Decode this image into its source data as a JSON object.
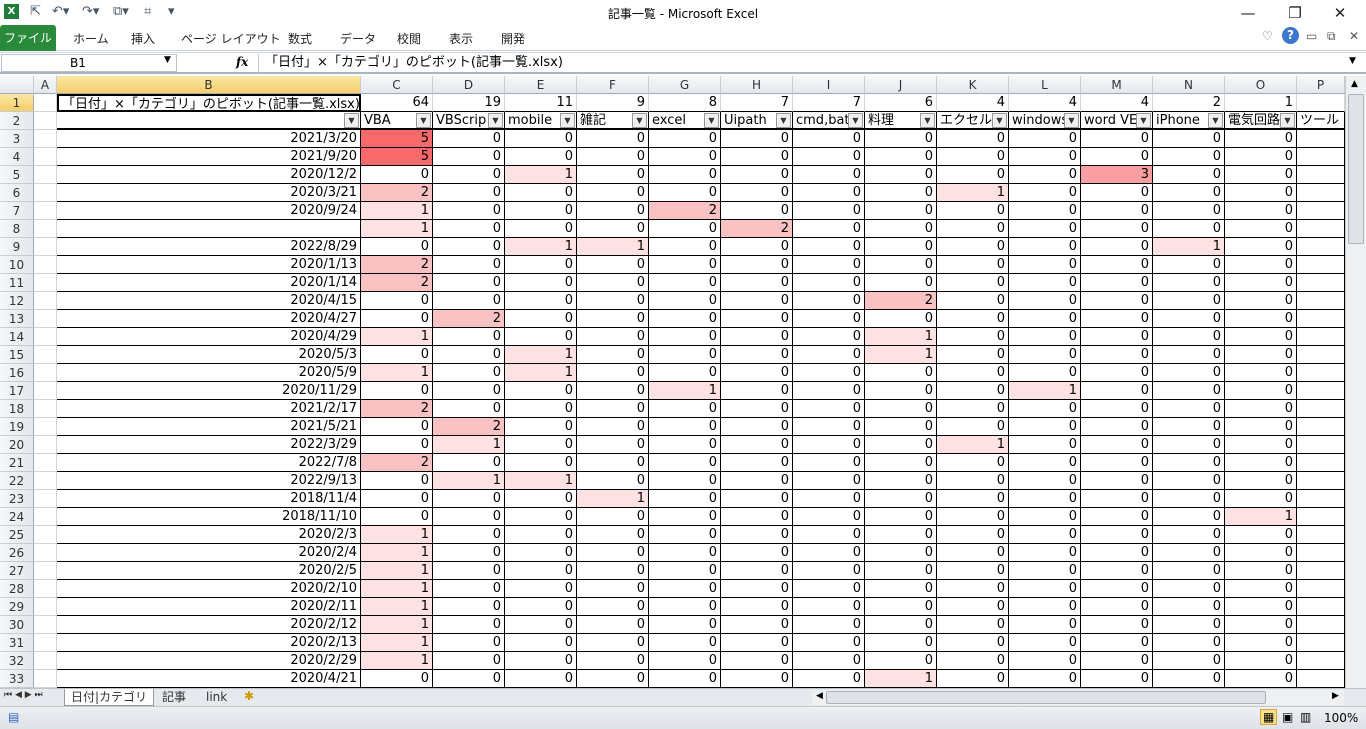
{
  "window": {
    "title": "記事一覧 - Microsoft Excel",
    "minimize": "—",
    "restore": "❐",
    "close": "✕"
  },
  "quick_access": [
    "excel-logo",
    "pointer",
    "undo",
    "redo",
    "shapes",
    "table-tool",
    "customize"
  ],
  "ribbon": {
    "tabs": [
      "ファイル",
      "ホーム",
      "挿入",
      "ページ レイアウト",
      "数式",
      "データ",
      "校閲",
      "表示",
      "開発"
    ]
  },
  "formula_bar": {
    "name_box": "B1",
    "fx": "fx",
    "value": "「日付」×「カテゴリ」のピボット(記事一覧.xlsx)"
  },
  "columns": [
    "A",
    "B",
    "C",
    "D",
    "E",
    "F",
    "G",
    "H",
    "I",
    "J",
    "K",
    "L",
    "M",
    "N",
    "O",
    "P"
  ],
  "selected_cell": "B1",
  "row1": {
    "title": "「日付」×「カテゴリ」のピボット(記事一覧.xlsx)",
    "totals": [
      "64",
      "19",
      "11",
      "9",
      "8",
      "7",
      "7",
      "6",
      "4",
      "4",
      "4",
      "2",
      "1",
      ""
    ]
  },
  "row2": {
    "headers": [
      "VBA",
      "VBScrip",
      "mobile",
      "雑記",
      "excel",
      "Uipath",
      "cmd,bat",
      "料理",
      "エクセル",
      "windows",
      "word VE",
      "iPhone",
      "電気回路",
      "ツール"
    ]
  },
  "rows": [
    {
      "date": "2021/3/20",
      "v": [
        5,
        0,
        0,
        0,
        0,
        0,
        0,
        0,
        0,
        0,
        0,
        0,
        0
      ]
    },
    {
      "date": "2021/9/20",
      "v": [
        5,
        0,
        0,
        0,
        0,
        0,
        0,
        0,
        0,
        0,
        0,
        0,
        0
      ]
    },
    {
      "date": "2020/12/2",
      "v": [
        0,
        0,
        1,
        0,
        0,
        0,
        0,
        0,
        0,
        0,
        3,
        0,
        0
      ]
    },
    {
      "date": "2020/3/21",
      "v": [
        2,
        0,
        0,
        0,
        0,
        0,
        0,
        0,
        1,
        0,
        0,
        0,
        0
      ]
    },
    {
      "date": "2020/9/24",
      "v": [
        1,
        0,
        0,
        0,
        2,
        0,
        0,
        0,
        0,
        0,
        0,
        0,
        0
      ]
    },
    {
      "date": "",
      "v": [
        1,
        0,
        0,
        0,
        0,
        2,
        0,
        0,
        0,
        0,
        0,
        0,
        0
      ]
    },
    {
      "date": "2022/8/29",
      "v": [
        0,
        0,
        1,
        1,
        0,
        0,
        0,
        0,
        0,
        0,
        0,
        1,
        0
      ]
    },
    {
      "date": "2020/1/13",
      "v": [
        2,
        0,
        0,
        0,
        0,
        0,
        0,
        0,
        0,
        0,
        0,
        0,
        0
      ]
    },
    {
      "date": "2020/1/14",
      "v": [
        2,
        0,
        0,
        0,
        0,
        0,
        0,
        0,
        0,
        0,
        0,
        0,
        0
      ]
    },
    {
      "date": "2020/4/15",
      "v": [
        0,
        0,
        0,
        0,
        0,
        0,
        0,
        2,
        0,
        0,
        0,
        0,
        0
      ]
    },
    {
      "date": "2020/4/27",
      "v": [
        0,
        2,
        0,
        0,
        0,
        0,
        0,
        0,
        0,
        0,
        0,
        0,
        0
      ]
    },
    {
      "date": "2020/4/29",
      "v": [
        1,
        0,
        0,
        0,
        0,
        0,
        0,
        1,
        0,
        0,
        0,
        0,
        0
      ]
    },
    {
      "date": "2020/5/3",
      "v": [
        0,
        0,
        1,
        0,
        0,
        0,
        0,
        1,
        0,
        0,
        0,
        0,
        0
      ]
    },
    {
      "date": "2020/5/9",
      "v": [
        1,
        0,
        1,
        0,
        0,
        0,
        0,
        0,
        0,
        0,
        0,
        0,
        0
      ]
    },
    {
      "date": "2020/11/29",
      "v": [
        0,
        0,
        0,
        0,
        1,
        0,
        0,
        0,
        0,
        1,
        0,
        0,
        0
      ]
    },
    {
      "date": "2021/2/17",
      "v": [
        2,
        0,
        0,
        0,
        0,
        0,
        0,
        0,
        0,
        0,
        0,
        0,
        0
      ]
    },
    {
      "date": "2021/5/21",
      "v": [
        0,
        2,
        0,
        0,
        0,
        0,
        0,
        0,
        0,
        0,
        0,
        0,
        0
      ]
    },
    {
      "date": "2022/3/29",
      "v": [
        0,
        1,
        0,
        0,
        0,
        0,
        0,
        0,
        1,
        0,
        0,
        0,
        0
      ]
    },
    {
      "date": "2022/7/8",
      "v": [
        2,
        0,
        0,
        0,
        0,
        0,
        0,
        0,
        0,
        0,
        0,
        0,
        0
      ]
    },
    {
      "date": "2022/9/13",
      "v": [
        0,
        1,
        1,
        0,
        0,
        0,
        0,
        0,
        0,
        0,
        0,
        0,
        0
      ]
    },
    {
      "date": "2018/11/4",
      "v": [
        0,
        0,
        0,
        1,
        0,
        0,
        0,
        0,
        0,
        0,
        0,
        0,
        0
      ]
    },
    {
      "date": "2018/11/10",
      "v": [
        0,
        0,
        0,
        0,
        0,
        0,
        0,
        0,
        0,
        0,
        0,
        0,
        1
      ]
    },
    {
      "date": "2020/2/3",
      "v": [
        1,
        0,
        0,
        0,
        0,
        0,
        0,
        0,
        0,
        0,
        0,
        0,
        0
      ]
    },
    {
      "date": "2020/2/4",
      "v": [
        1,
        0,
        0,
        0,
        0,
        0,
        0,
        0,
        0,
        0,
        0,
        0,
        0
      ]
    },
    {
      "date": "2020/2/5",
      "v": [
        1,
        0,
        0,
        0,
        0,
        0,
        0,
        0,
        0,
        0,
        0,
        0,
        0
      ]
    },
    {
      "date": "2020/2/10",
      "v": [
        1,
        0,
        0,
        0,
        0,
        0,
        0,
        0,
        0,
        0,
        0,
        0,
        0
      ]
    },
    {
      "date": "2020/2/11",
      "v": [
        1,
        0,
        0,
        0,
        0,
        0,
        0,
        0,
        0,
        0,
        0,
        0,
        0
      ]
    },
    {
      "date": "2020/2/12",
      "v": [
        1,
        0,
        0,
        0,
        0,
        0,
        0,
        0,
        0,
        0,
        0,
        0,
        0
      ]
    },
    {
      "date": "2020/2/13",
      "v": [
        1,
        0,
        0,
        0,
        0,
        0,
        0,
        0,
        0,
        0,
        0,
        0,
        0
      ]
    },
    {
      "date": "2020/2/29",
      "v": [
        1,
        0,
        0,
        0,
        0,
        0,
        0,
        0,
        0,
        0,
        0,
        0,
        0
      ]
    },
    {
      "date": "2020/4/21",
      "v": [
        0,
        0,
        0,
        0,
        0,
        0,
        0,
        1,
        0,
        0,
        0,
        0,
        0
      ]
    }
  ],
  "heat_colors": {
    "1": "#fde1e3",
    "2": "#fbc2c3",
    "3": "#fa9fa1",
    "5": "#f8696b"
  },
  "sheets": {
    "tabs": [
      "日付|カテゴリ",
      "記事",
      "link"
    ],
    "active": 0
  },
  "status": {
    "zoom": "100%"
  }
}
